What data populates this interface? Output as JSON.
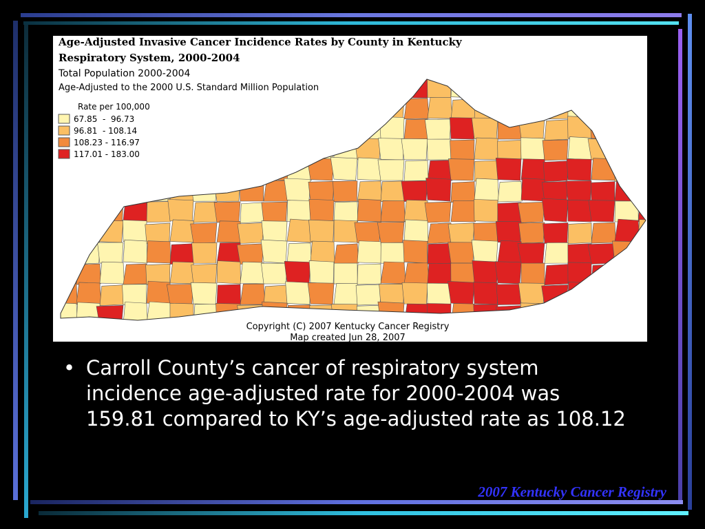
{
  "map": {
    "title_lines": [
      "Age-Adjusted Invasive Cancer Incidence Rates by County in Kentucky",
      "Respiratory System, 2000-2004"
    ],
    "subtitle": "Total Population 2000-2004",
    "note": "Age-Adjusted to the 2000 U.S. Standard Million Population",
    "legend": {
      "title": "Rate per 100,000",
      "items": [
        {
          "label": "67.85  -  96.73",
          "color": "#fff5b0"
        },
        {
          "label": "96.81  - 108.14",
          "color": "#fbbf63"
        },
        {
          "label": "108.23 - 116.97",
          "color": "#f28a3c"
        },
        {
          "label": "117.01 - 183.00",
          "color": "#de2222"
        }
      ]
    },
    "copyright": "Copyright (C) 2007 Kentucky Cancer Registry",
    "created": "Map created Jun 28, 2007"
  },
  "slide": {
    "bullet": "Carroll County’s cancer of respiratory system incidence age-adjusted rate for 2000-2004 was 159.81  compared to KY’s age-adjusted rate as 108.12",
    "footer": "2007 Kentucky Cancer Registry"
  }
}
